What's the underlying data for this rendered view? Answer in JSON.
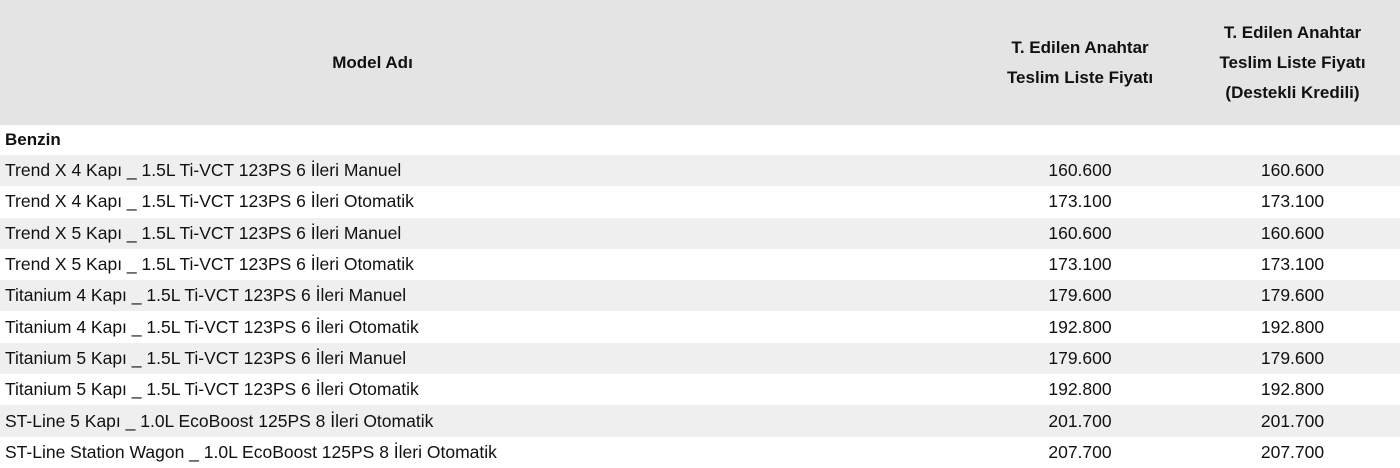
{
  "table": {
    "header": [
      [
        "Model Adı"
      ],
      [
        "T. Edilen Anahtar",
        "Teslim Liste Fiyatı"
      ],
      [
        "T. Edilen Anahtar",
        "Teslim Liste Fiyatı",
        "(Destekli Kredili)"
      ]
    ],
    "section": "Benzin",
    "rows": [
      [
        "Trend X 4 Kapı _ 1.5L Ti-VCT 123PS 6 İleri Manuel",
        "160.600",
        "160.600"
      ],
      [
        "Trend X 4 Kapı _ 1.5L Ti-VCT 123PS 6 İleri Otomatik",
        "173.100",
        "173.100"
      ],
      [
        "Trend X 5 Kapı _ 1.5L Ti-VCT 123PS 6 İleri Manuel",
        "160.600",
        "160.600"
      ],
      [
        "Trend X 5 Kapı _ 1.5L Ti-VCT 123PS 6 İleri Otomatik",
        "173.100",
        "173.100"
      ],
      [
        "Titanium 4 Kapı _ 1.5L Ti-VCT 123PS 6 İleri Manuel",
        "179.600",
        "179.600"
      ],
      [
        "Titanium 4 Kapı _ 1.5L Ti-VCT 123PS 6 İleri Otomatik",
        "192.800",
        "192.800"
      ],
      [
        "Titanium 5 Kapı _ 1.5L Ti-VCT 123PS 6 İleri Manuel",
        "179.600",
        "179.600"
      ],
      [
        "Titanium 5 Kapı _ 1.5L Ti-VCT 123PS 6 İleri Otomatik",
        "192.800",
        "192.800"
      ],
      [
        "ST-Line 5 Kapı _ 1.0L EcoBoost 125PS 8 İleri Otomatik",
        "201.700",
        "201.700"
      ],
      [
        "ST-Line Station Wagon _ 1.0L EcoBoost 125PS 8 İleri Otomatik",
        "207.700",
        "207.700"
      ]
    ]
  }
}
